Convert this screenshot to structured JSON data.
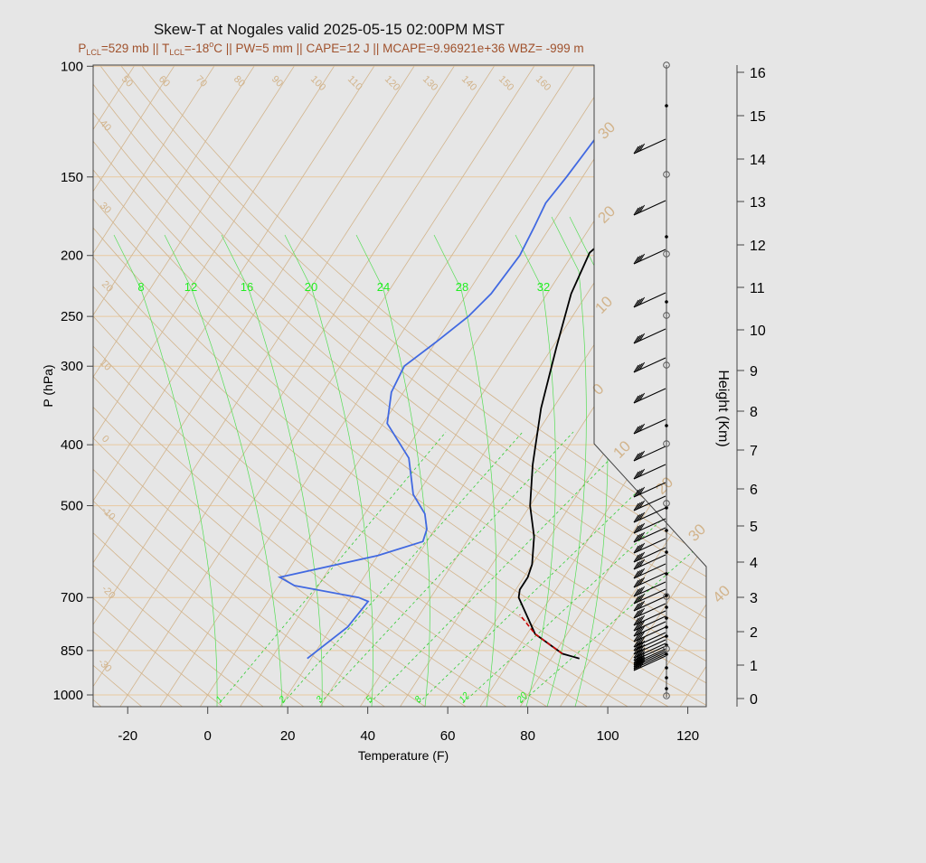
{
  "title": "Skew-T at Nogales valid 2025-05-15 02:00PM MST",
  "subtitle": {
    "p_lcl": "=529 mb",
    "t_lcl": "=-18",
    "deg": "o",
    "rest": "C || PW=5 mm || CAPE=12 J || MCAPE=9.96921e+36 WBZ= -999 m",
    "p_sym": "P",
    "t_sym": "T",
    "sub_lcl": "LCL",
    "sep": " || "
  },
  "axes": {
    "xlabel": "Temperature (F)",
    "ylabel": "P (hPa)",
    "y2label": "Height (Km)",
    "x_ticks": [
      "-20",
      "0",
      "20",
      "40",
      "60",
      "80",
      "100",
      "120"
    ],
    "x_tick_values": [
      -20,
      0,
      20,
      40,
      60,
      80,
      100,
      120
    ],
    "p_ticks": [
      "100",
      "150",
      "200",
      "250",
      "300",
      "400",
      "500",
      "700",
      "850",
      "1000"
    ],
    "p_tick_values": [
      100,
      150,
      200,
      250,
      300,
      400,
      500,
      700,
      850,
      1000
    ],
    "height_ticks": [
      "0",
      "1",
      "2",
      "3",
      "4",
      "5",
      "6",
      "7",
      "8",
      "9",
      "10",
      "11",
      "12",
      "13",
      "14",
      "15",
      "16"
    ]
  },
  "chart_data": {
    "type": "line",
    "title": "Skew-T at Nogales valid 2025-05-15 02:00PM MST",
    "xlabel": "Temperature (F)",
    "ylabel": "P (hPa)",
    "y2label": "Height (Km)",
    "xlim": [
      -29,
      125
    ],
    "ylim": [
      1050,
      100
    ],
    "y_scale": "log",
    "series": [
      {
        "color": "#000000",
        "points": [
          [
            87,
            875
          ],
          [
            82,
            860
          ],
          [
            72,
            800
          ],
          [
            62,
            700
          ],
          [
            61,
            680
          ],
          [
            61,
            650
          ],
          [
            60,
            620
          ],
          [
            56,
            560
          ],
          [
            50,
            500
          ],
          [
            44,
            430
          ],
          [
            37,
            350
          ],
          [
            31,
            280
          ],
          [
            26,
            230
          ],
          [
            24,
            198
          ],
          [
            29,
            170
          ],
          [
            34,
            150
          ],
          [
            42,
            130
          ],
          [
            53,
            113
          ],
          [
            61,
            100
          ]
        ]
      },
      {
        "color": "#4169e1",
        "points": [
          [
            19,
            875
          ],
          [
            24,
            780
          ],
          [
            25,
            710
          ],
          [
            22,
            700
          ],
          [
            4,
            670
          ],
          [
            -1,
            650
          ],
          [
            20,
            600
          ],
          [
            29,
            570
          ],
          [
            28,
            545
          ],
          [
            25,
            515
          ],
          [
            19,
            480
          ],
          [
            12,
            420
          ],
          [
            1,
            370
          ],
          [
            -3,
            330
          ],
          [
            -4,
            300
          ],
          [
            0,
            275
          ],
          [
            4,
            250
          ],
          [
            6,
            230
          ],
          [
            7,
            200
          ],
          [
            6,
            180
          ],
          [
            5,
            165
          ],
          [
            6,
            150
          ],
          [
            7,
            130
          ],
          [
            39,
            100
          ]
        ]
      },
      {
        "color": "#cc0000",
        "dashed": true,
        "points": [
          [
            82,
            860
          ],
          [
            72,
            800
          ],
          [
            65,
            745
          ]
        ]
      }
    ],
    "dry_adiabat_labels": [
      "-30",
      "-20",
      "-10",
      "0",
      "10",
      "20",
      "30",
      "40",
      "50",
      "60",
      "70",
      "80",
      "90",
      "100",
      "110",
      "120",
      "130",
      "140",
      "150",
      "160"
    ],
    "moist_adiabat_labels": [
      "8",
      "12",
      "16",
      "20",
      "24",
      "28",
      "32"
    ],
    "mixing_ratio_labels": [
      "1",
      "2",
      "3",
      "5",
      "8",
      "12",
      "20"
    ],
    "isotherm_labels": [
      "-10",
      "0",
      "10",
      "20",
      "30",
      "40"
    ],
    "winds": {
      "levels_count": 40,
      "heights_open": [
        "0",
        "1",
        "3",
        "5",
        "7",
        "9",
        "10",
        "12",
        "13",
        "14",
        "16"
      ],
      "solid_dots": 24
    }
  },
  "colors": {
    "temperature": "#000000",
    "dewpoint": "#4169e1",
    "parcel": "#cc0000",
    "adiabat": "#d2b48c",
    "moist": "#22ee22",
    "background": "#e6e6e6"
  }
}
